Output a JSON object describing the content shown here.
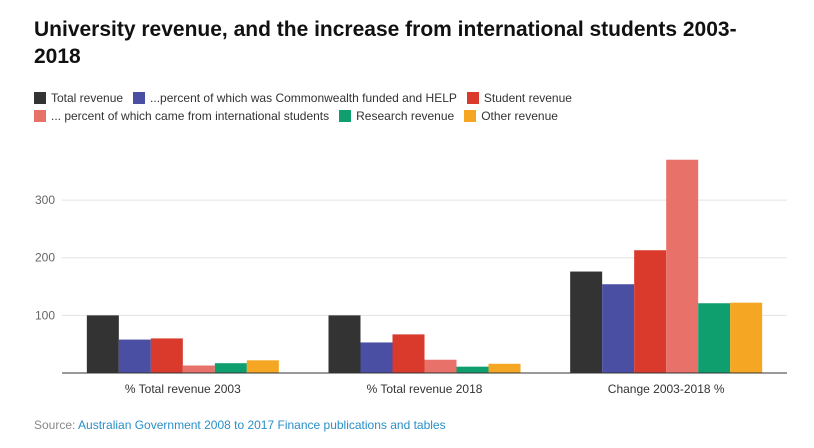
{
  "title": "University revenue, and the increase from international students 2003-2018",
  "legend": [
    {
      "label": "Total revenue",
      "color": "#333333"
    },
    {
      "label": "...percent of which was Commonwealth funded and HELP",
      "color": "#4a4fa3"
    },
    {
      "label": "Student revenue",
      "color": "#d93a2b"
    },
    {
      "label": "... percent of which came from international students",
      "color": "#e8726a"
    },
    {
      "label": "Research revenue",
      "color": "#0f9e6e"
    },
    {
      "label": "Other revenue",
      "color": "#f5a623"
    }
  ],
  "source": {
    "prefix": "Source: ",
    "link_text": "Australian Government 2008 to 2017 Finance publications and tables"
  },
  "chart_data": {
    "type": "bar",
    "categories": [
      "% Total revenue 2003",
      "% Total revenue 2018",
      "Change 2003-2018 %"
    ],
    "series": [
      {
        "name": "Total revenue",
        "color": "#333333",
        "values": [
          100,
          100,
          176
        ]
      },
      {
        "name": "...percent of which was Commonwealth funded and HELP",
        "color": "#4a4fa3",
        "values": [
          58,
          53,
          154
        ]
      },
      {
        "name": "Student revenue",
        "color": "#d93a2b",
        "values": [
          60,
          67,
          213
        ]
      },
      {
        "name": "... percent of which came from international students",
        "color": "#e8726a",
        "values": [
          13,
          23,
          370
        ]
      },
      {
        "name": "Research revenue",
        "color": "#0f9e6e",
        "values": [
          17,
          11,
          121
        ]
      },
      {
        "name": "Other revenue",
        "color": "#f5a623",
        "values": [
          22,
          16,
          122
        ]
      }
    ],
    "yticks": [
      100,
      200,
      300
    ],
    "ylim": [
      0,
      400
    ],
    "grid": true
  }
}
